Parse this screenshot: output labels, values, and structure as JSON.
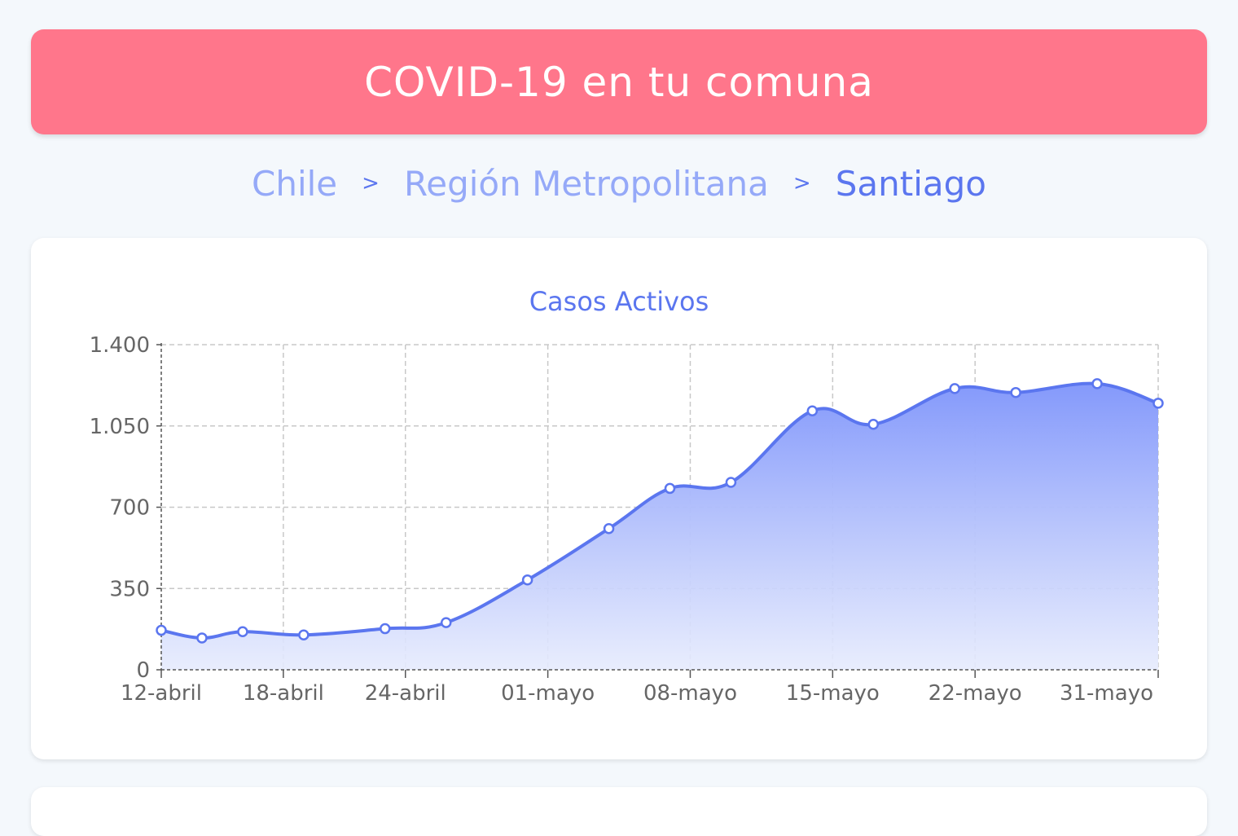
{
  "header": {
    "title": "COVID-19 en tu comuna"
  },
  "breadcrumb": {
    "country": "Chile",
    "separator": ">",
    "region": "Región Metropolitana",
    "commune": "Santiago"
  },
  "colors": {
    "header_bg": "#ff768b",
    "accent": "#5b76ef",
    "breadcrumb_link": "#95a9f8",
    "area_top": "#8499fb",
    "area_bottom": "#e6ebfd"
  },
  "chart_data": {
    "type": "area",
    "title": "Casos Activos",
    "xlabel": "",
    "ylabel": "",
    "ylim": [
      0,
      1400
    ],
    "y_ticks": [
      0,
      350,
      700,
      1050,
      1400
    ],
    "y_tick_labels": [
      "0",
      "350",
      "700",
      "1.050",
      "1.400"
    ],
    "x_tick_labels": [
      "12-abril",
      "18-abril",
      "24-abril",
      "01-mayo",
      "08-mayo",
      "15-mayo",
      "22-mayo",
      "31-mayo"
    ],
    "x_tick_days": [
      0,
      6,
      12,
      19,
      26,
      33,
      40,
      49
    ],
    "grid": true,
    "series": [
      {
        "x_days": [
          0,
          2,
          4,
          7,
          11,
          14,
          18,
          22,
          25,
          28,
          32,
          35,
          39,
          42,
          46,
          49
        ],
        "x": [
          "12-abril",
          "14-abril",
          "16-abril",
          "19-abril",
          "23-abril",
          "26-abril",
          "30-abril",
          "04-mayo",
          "07-mayo",
          "10-mayo",
          "14-mayo",
          "17-mayo",
          "21-mayo",
          "24-mayo",
          "28-mayo",
          "31-mayo"
        ],
        "values": [
          170,
          137,
          164,
          150,
          177,
          203,
          387,
          608,
          781,
          807,
          1115,
          1057,
          1211,
          1194,
          1232,
          1148
        ]
      }
    ]
  }
}
